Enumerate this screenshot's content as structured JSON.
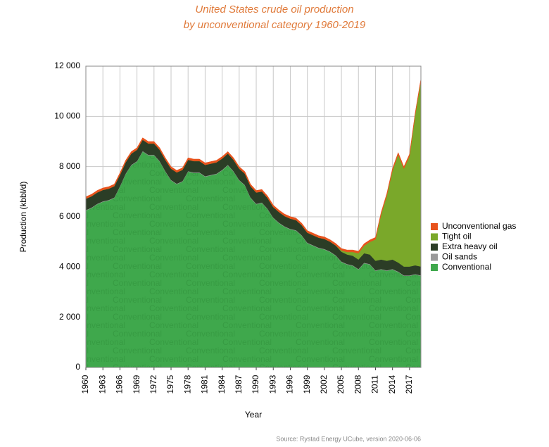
{
  "chart_data": {
    "type": "stacked_area",
    "title": [
      "United States crude oil production",
      "by unconventional category 1960-2019"
    ],
    "xlabel": "Year",
    "ylabel": "Production (kbbl/d)",
    "source": "Source: Rystad Energy UCube, version 2020-06-06",
    "x": [
      1960,
      1961,
      1962,
      1963,
      1964,
      1965,
      1966,
      1967,
      1968,
      1969,
      1970,
      1971,
      1972,
      1973,
      1974,
      1975,
      1976,
      1977,
      1978,
      1979,
      1980,
      1981,
      1982,
      1983,
      1984,
      1985,
      1986,
      1987,
      1988,
      1989,
      1990,
      1991,
      1992,
      1993,
      1994,
      1995,
      1996,
      1997,
      1998,
      1999,
      2000,
      2001,
      2002,
      2003,
      2004,
      2005,
      2006,
      2007,
      2008,
      2009,
      2010,
      2011,
      2012,
      2013,
      2014,
      2015,
      2016,
      2017,
      2018,
      2019
    ],
    "xlim": [
      1960,
      2019
    ],
    "xticks": [
      1960,
      1963,
      1966,
      1969,
      1972,
      1975,
      1978,
      1981,
      1984,
      1987,
      1990,
      1993,
      1996,
      1999,
      2002,
      2005,
      2008,
      2011,
      2014,
      2017
    ],
    "ylim": [
      0,
      12000
    ],
    "yticks": [
      0,
      {
        "value": 2000,
        "label": "2 000"
      },
      {
        "value": 4000,
        "label": "4 000"
      },
      {
        "value": 6000,
        "label": "6 000"
      },
      {
        "value": 8000,
        "label": "8 000"
      },
      {
        "value": 10000,
        "label": "10 000"
      },
      {
        "value": 12000,
        "label": "12 000"
      }
    ],
    "grid": true,
    "legend": "right",
    "series": [
      {
        "name": "Unconventional gas",
        "color": "#e8521c",
        "values": [
          80,
          80,
          80,
          80,
          80,
          80,
          80,
          80,
          80,
          80,
          80,
          80,
          80,
          80,
          80,
          80,
          80,
          80,
          80,
          80,
          80,
          80,
          80,
          80,
          80,
          80,
          80,
          80,
          80,
          80,
          80,
          80,
          80,
          80,
          80,
          80,
          80,
          80,
          80,
          80,
          80,
          80,
          80,
          80,
          80,
          80,
          80,
          80,
          80,
          80,
          80,
          80,
          80,
          80,
          80,
          80,
          80,
          80,
          80,
          80
        ]
      },
      {
        "name": "Tight oil",
        "color": "#7aa82a",
        "values": [
          0,
          0,
          0,
          0,
          0,
          0,
          0,
          0,
          0,
          0,
          0,
          0,
          0,
          0,
          0,
          0,
          0,
          0,
          0,
          0,
          0,
          0,
          0,
          0,
          0,
          0,
          0,
          0,
          0,
          0,
          0,
          0,
          0,
          0,
          0,
          0,
          0,
          0,
          0,
          0,
          0,
          0,
          0,
          0,
          0,
          50,
          100,
          150,
          250,
          300,
          500,
          850,
          1800,
          2600,
          3550,
          4300,
          3900,
          4400,
          6000,
          7400
        ]
      },
      {
        "name": "Extra heavy oil",
        "color": "#2b3d26",
        "values": [
          450,
          450,
          450,
          450,
          450,
          450,
          450,
          450,
          450,
          450,
          450,
          450,
          450,
          450,
          450,
          450,
          450,
          450,
          450,
          450,
          450,
          450,
          450,
          450,
          450,
          450,
          450,
          450,
          450,
          450,
          450,
          440,
          430,
          420,
          420,
          410,
          410,
          400,
          400,
          400,
          400,
          400,
          400,
          390,
          390,
          390,
          380,
          380,
          380,
          380,
          380,
          380,
          380,
          380,
          380,
          360,
          350,
          350,
          350,
          350
        ]
      },
      {
        "name": "Oil sands",
        "color": "#9a9a9a",
        "values": [
          20,
          20,
          20,
          20,
          20,
          20,
          20,
          20,
          20,
          20,
          20,
          20,
          20,
          20,
          20,
          20,
          20,
          20,
          20,
          20,
          20,
          20,
          20,
          20,
          20,
          20,
          20,
          20,
          20,
          20,
          20,
          20,
          20,
          20,
          20,
          20,
          20,
          20,
          20,
          20,
          20,
          20,
          20,
          20,
          20,
          20,
          20,
          20,
          20,
          20,
          20,
          20,
          20,
          20,
          20,
          20,
          20,
          20,
          20,
          20
        ]
      },
      {
        "name": "Conventional",
        "color": "#3fa84c",
        "values": [
          6250,
          6350,
          6500,
          6600,
          6650,
          6750,
          7200,
          7700,
          8050,
          8200,
          8600,
          8450,
          8450,
          8200,
          7800,
          7450,
          7300,
          7400,
          7800,
          7750,
          7750,
          7600,
          7650,
          7700,
          7850,
          8050,
          7800,
          7450,
          7250,
          6750,
          6500,
          6550,
          6300,
          5950,
          5750,
          5600,
          5500,
          5450,
          5250,
          4950,
          4850,
          4750,
          4700,
          4600,
          4450,
          4200,
          4100,
          4050,
          3900,
          4150,
          4100,
          3850,
          3900,
          3850,
          3900,
          3800,
          3650,
          3650,
          3700,
          3650
        ]
      }
    ]
  }
}
